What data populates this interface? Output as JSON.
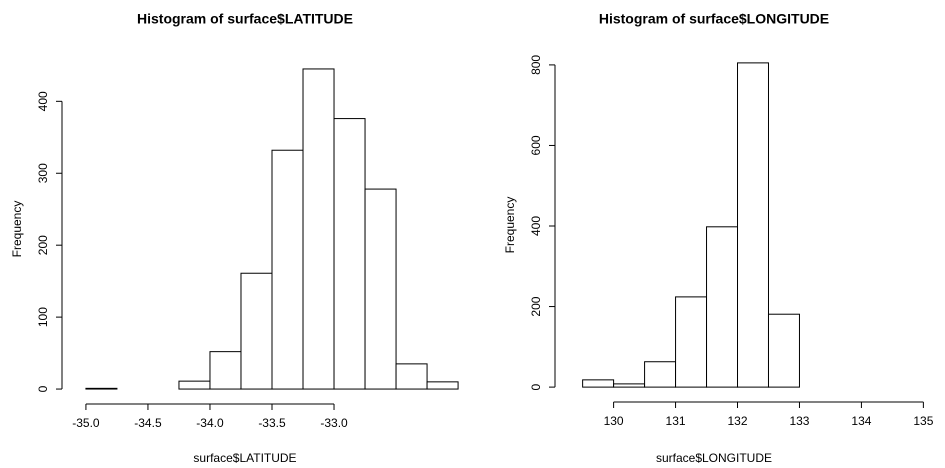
{
  "chart_data": [
    {
      "type": "histogram",
      "title": "Histogram of surface$LATITUDE",
      "xlabel": "surface$LATITUDE",
      "ylabel": "Frequency",
      "bins": [
        -35.0,
        -34.75,
        -34.5,
        -34.25,
        -34.0,
        -33.75,
        -33.5,
        -33.25,
        -33.0,
        -32.75,
        -32.5,
        -32.25,
        -32.0
      ],
      "values": [
        1,
        0,
        0,
        11,
        52,
        161,
        332,
        445,
        376,
        278,
        35,
        10
      ],
      "color": "#ffffff",
      "xlim": [
        -35.08,
        -31.92
      ],
      "ylim": [
        -18,
        463
      ],
      "xticks": [
        {
          "value": -35,
          "label": "-35.0"
        },
        -34.5,
        {
          "value": -34,
          "label": "-34.0"
        },
        -33.5,
        {
          "value": -33,
          "label": "-33.0"
        }
      ],
      "yticks": [
        0,
        100,
        200,
        300,
        400
      ]
    },
    {
      "type": "histogram",
      "title": "Histogram of surface$LONGITUDE",
      "xlabel": "surface$LONGITUDE",
      "ylabel": "Frequency",
      "bins": [
        129.5,
        130,
        130.5,
        131,
        131.5,
        132,
        132.5,
        133,
        133.5,
        134,
        134.5,
        135
      ],
      "values": [
        18,
        8,
        63,
        224,
        398,
        805,
        181,
        0,
        0,
        0,
        0
      ],
      "color": "#ffffff",
      "xlim": [
        129.28,
        135.22
      ],
      "ylim": [
        -32,
        837
      ],
      "xticks": [
        130,
        131,
        132,
        133,
        134,
        135
      ],
      "yticks": [
        0,
        200,
        400,
        600,
        800
      ]
    }
  ]
}
